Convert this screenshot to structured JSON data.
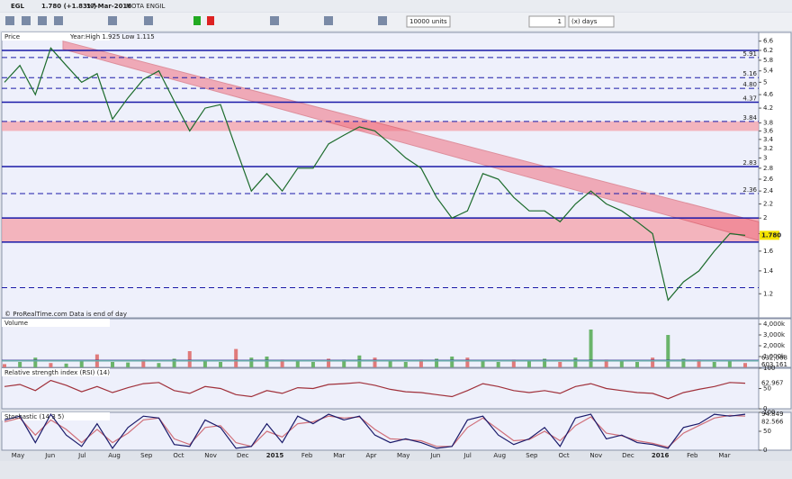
{
  "title_bar": {
    "symbol": "EGL",
    "last": "1.780 (+1.83%)",
    "date": "17-Mar-2016",
    "name": "MOTA ENGIL"
  },
  "toolbar": {
    "quantity": "10000 units",
    "period_count": "1",
    "period_unit": "(x) days"
  },
  "price_panel": {
    "label": "Price",
    "info": "Year:High 1.925 Low 1.115",
    "credit": "© ProRealTime.com  Data is end of day",
    "log_scale": true,
    "ylim": [
      1.02,
      7.0
    ],
    "yticks": [
      6.6,
      6.2,
      5.8,
      5.4,
      5,
      4.6,
      4.2,
      3.8,
      3.6,
      3.4,
      3.2,
      3,
      2.8,
      2.6,
      2.4,
      2.2,
      2,
      1.8,
      1.6,
      1.4,
      1.2
    ],
    "levels": [
      {
        "value": 6.2,
        "style": "solid"
      },
      {
        "value": 5.91,
        "label": "5.91",
        "style": "dashed"
      },
      {
        "value": 5.16,
        "label": "5.16",
        "style": "dashed"
      },
      {
        "value": 4.8,
        "label": "4.80",
        "style": "dashed"
      },
      {
        "value": 4.37,
        "label": "4.37",
        "style": "solid"
      },
      {
        "value": 3.84,
        "label": "3.84",
        "style": "dashed"
      },
      {
        "value": 2.83,
        "label": "2.83",
        "style": "solid"
      },
      {
        "value": 2.36,
        "label": "2.36",
        "style": "dashed"
      },
      {
        "value": 2,
        "style": "solid"
      },
      {
        "value": 1.7,
        "style": "solid"
      },
      {
        "value": 1.25,
        "style": "dashed"
      }
    ],
    "bands": [
      [
        3.6,
        3.84
      ],
      [
        1.7,
        2.0
      ]
    ],
    "channel": {
      "start": [
        6.6,
        6.25
      ],
      "end": [
        1.95,
        1.72
      ]
    },
    "current": {
      "value": 1.78,
      "label": "1.780"
    },
    "close": [
      5.0,
      5.6,
      4.6,
      6.3,
      5.6,
      5.0,
      5.3,
      3.9,
      4.5,
      5.1,
      5.4,
      4.4,
      3.6,
      4.2,
      4.3,
      3.2,
      2.4,
      2.7,
      2.4,
      2.8,
      2.8,
      3.3,
      3.5,
      3.7,
      3.6,
      3.3,
      3.0,
      2.8,
      2.3,
      2.0,
      2.1,
      2.7,
      2.6,
      2.3,
      2.1,
      2.1,
      1.95,
      2.2,
      2.4,
      2.2,
      2.1,
      1.95,
      1.8,
      1.15,
      1.3,
      1.4,
      1.6,
      1.8,
      1.78
    ]
  },
  "volume_panel": {
    "label": "Volume",
    "ylim": [
      0,
      4500000
    ],
    "yticks": [
      {
        "value": 4000000,
        "label": "4,000k"
      },
      {
        "value": 3000000,
        "label": "3,000k"
      },
      {
        "value": 2000000,
        "label": "2,000k"
      },
      {
        "value": 1000000,
        "label": "1,000k"
      }
    ],
    "average": [
      {
        "value": 632068,
        "label": "632,068"
      },
      {
        "value": 603161,
        "label": "603,161"
      }
    ],
    "values": [
      300000,
      500000,
      900000,
      400000,
      350000,
      600000,
      1200000,
      500000,
      450000,
      700000,
      400000,
      800000,
      1500000,
      600000,
      500000,
      1700000,
      900000,
      1000000,
      700000,
      600000,
      500000,
      800000,
      700000,
      1100000,
      900000,
      600000,
      500000,
      700000,
      800000,
      1000000,
      900000,
      600000,
      500000,
      700000,
      600000,
      800000,
      500000,
      900000,
      3500000,
      700000,
      600000,
      500000,
      900000,
      3000000,
      800000,
      700000,
      500000,
      600000,
      400000
    ]
  },
  "rsi_panel": {
    "label": "Relative strength index (RSI) (14)",
    "ylim": [
      0,
      100
    ],
    "yticks": [
      100,
      50,
      0
    ],
    "last": {
      "value": 62.967,
      "label": "62.967"
    },
    "values": [
      55,
      60,
      45,
      70,
      58,
      42,
      55,
      40,
      52,
      62,
      65,
      45,
      38,
      55,
      50,
      35,
      30,
      45,
      38,
      52,
      50,
      60,
      62,
      65,
      58,
      48,
      42,
      40,
      35,
      30,
      45,
      62,
      55,
      45,
      40,
      45,
      38,
      55,
      62,
      50,
      45,
      40,
      38,
      25,
      40,
      48,
      55,
      65,
      63
    ]
  },
  "stoch_panel": {
    "label": "Stochastic (14 3 5)",
    "ylim": [
      0,
      100
    ],
    "yticks": [
      100,
      50,
      0
    ],
    "last": [
      {
        "value": 94.849,
        "label": "94.849"
      },
      {
        "value": 82.566,
        "label": "82.566"
      }
    ],
    "k": [
      80,
      90,
      20,
      95,
      40,
      10,
      70,
      5,
      60,
      90,
      85,
      15,
      10,
      80,
      60,
      5,
      10,
      70,
      20,
      90,
      70,
      95,
      80,
      90,
      40,
      20,
      30,
      20,
      5,
      10,
      80,
      90,
      40,
      15,
      30,
      60,
      10,
      85,
      95,
      30,
      40,
      20,
      15,
      5,
      60,
      70,
      95,
      90,
      95
    ],
    "d": [
      75,
      85,
      40,
      80,
      55,
      20,
      55,
      20,
      45,
      80,
      85,
      30,
      15,
      60,
      65,
      20,
      10,
      50,
      35,
      70,
      75,
      90,
      85,
      88,
      55,
      30,
      28,
      25,
      10,
      10,
      60,
      85,
      55,
      25,
      28,
      50,
      25,
      65,
      88,
      45,
      38,
      25,
      18,
      8,
      45,
      65,
      85,
      92,
      90
    ]
  },
  "x_axis": [
    "May",
    "Jun",
    "Jul",
    "Aug",
    "Sep",
    "Oct",
    "Nov",
    "Dec",
    "2015",
    "Feb",
    "Mar",
    "Apr",
    "May",
    "Jun",
    "Jul",
    "Aug",
    "Sep",
    "Oct",
    "Nov",
    "Dec",
    "2016",
    "Feb",
    "Mar"
  ]
}
